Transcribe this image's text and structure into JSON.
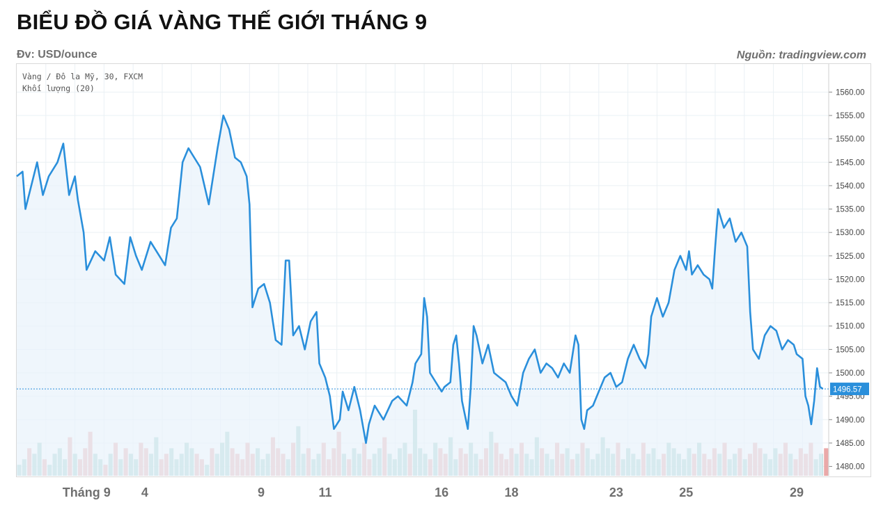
{
  "header": {
    "title": "BIỂU ĐỒ GIÁ VÀNG THẾ GIỚI THÁNG 9",
    "unit": "Đv: USD/ounce",
    "source": "Nguồn: tradingview.com"
  },
  "colors": {
    "line": "#2a8fdb",
    "area": "#e9f3fb",
    "grid": "#eaf0f4",
    "vol_up": "#8fc7bf",
    "vol_down": "#e69a9a",
    "price_label_bg": "#2a8fdb"
  },
  "chart_data": {
    "type": "line",
    "legend": [
      "Vàng / Đô la Mỹ, 30, FXCM",
      "Khối lượng (20)"
    ],
    "ylim": [
      1478,
      1566
    ],
    "yticks": [
      1480,
      1485,
      1490,
      1495,
      1500,
      1505,
      1510,
      1515,
      1520,
      1525,
      1530,
      1535,
      1540,
      1545,
      1550,
      1555,
      1560
    ],
    "ytick_labels": [
      "1480.00",
      "1485.00",
      "1490.00",
      "1495.00",
      "1500.00",
      "1505.00",
      "1510.00",
      "1515.00",
      "1520.00",
      "1525.00",
      "1530.00",
      "1535.00",
      "1540.00",
      "1545.00",
      "1550.00",
      "1555.00",
      "1560.00"
    ],
    "x_tick_labels": [
      {
        "label": "Tháng 9",
        "t": 1.2
      },
      {
        "label": "4",
        "t": 2.2
      },
      {
        "label": "9",
        "t": 4.2
      },
      {
        "label": "11",
        "t": 5.3
      },
      {
        "label": "16",
        "t": 7.3
      },
      {
        "label": "18",
        "t": 8.5
      },
      {
        "label": "23",
        "t": 10.3
      },
      {
        "label": "25",
        "t": 11.5
      },
      {
        "label": "29",
        "t": 13.4
      }
    ],
    "last_price": 1496.57,
    "last_price_label": "1496.57",
    "series": [
      {
        "values": [
          [
            0.0,
            1542
          ],
          [
            0.1,
            1543
          ],
          [
            0.15,
            1535
          ],
          [
            0.25,
            1540
          ],
          [
            0.35,
            1545
          ],
          [
            0.45,
            1538
          ],
          [
            0.55,
            1542
          ],
          [
            0.7,
            1545
          ],
          [
            0.8,
            1549
          ],
          [
            0.9,
            1538
          ],
          [
            1.0,
            1542
          ],
          [
            1.05,
            1537
          ],
          [
            1.15,
            1530
          ],
          [
            1.2,
            1522
          ],
          [
            1.35,
            1526
          ],
          [
            1.5,
            1524
          ],
          [
            1.6,
            1529
          ],
          [
            1.7,
            1521
          ],
          [
            1.85,
            1519
          ],
          [
            1.95,
            1529
          ],
          [
            2.05,
            1525
          ],
          [
            2.15,
            1522
          ],
          [
            2.3,
            1528
          ],
          [
            2.45,
            1525
          ],
          [
            2.55,
            1523
          ],
          [
            2.65,
            1531
          ],
          [
            2.75,
            1533
          ],
          [
            2.85,
            1545
          ],
          [
            2.95,
            1548
          ],
          [
            3.05,
            1546
          ],
          [
            3.15,
            1544
          ],
          [
            3.3,
            1536
          ],
          [
            3.45,
            1548
          ],
          [
            3.55,
            1555
          ],
          [
            3.65,
            1552
          ],
          [
            3.75,
            1546
          ],
          [
            3.85,
            1545
          ],
          [
            3.95,
            1542
          ],
          [
            4.0,
            1536
          ],
          [
            4.05,
            1514
          ],
          [
            4.15,
            1518
          ],
          [
            4.25,
            1519
          ],
          [
            4.35,
            1515
          ],
          [
            4.45,
            1507
          ],
          [
            4.55,
            1506
          ],
          [
            4.62,
            1524
          ],
          [
            4.68,
            1524
          ],
          [
            4.75,
            1508
          ],
          [
            4.85,
            1510
          ],
          [
            4.95,
            1505
          ],
          [
            5.05,
            1511
          ],
          [
            5.15,
            1513
          ],
          [
            5.2,
            1502
          ],
          [
            5.3,
            1499
          ],
          [
            5.38,
            1495
          ],
          [
            5.45,
            1488
          ],
          [
            5.55,
            1490
          ],
          [
            5.6,
            1496
          ],
          [
            5.7,
            1492
          ],
          [
            5.8,
            1497
          ],
          [
            5.9,
            1492
          ],
          [
            6.0,
            1485
          ],
          [
            6.05,
            1489
          ],
          [
            6.15,
            1493
          ],
          [
            6.3,
            1490
          ],
          [
            6.45,
            1494
          ],
          [
            6.55,
            1495
          ],
          [
            6.7,
            1493
          ],
          [
            6.8,
            1498
          ],
          [
            6.85,
            1502
          ],
          [
            6.95,
            1504
          ],
          [
            7.0,
            1516
          ],
          [
            7.05,
            1512
          ],
          [
            7.1,
            1500
          ],
          [
            7.2,
            1498
          ],
          [
            7.3,
            1496
          ],
          [
            7.35,
            1497
          ],
          [
            7.45,
            1498
          ],
          [
            7.5,
            1506
          ],
          [
            7.55,
            1508
          ],
          [
            7.6,
            1502
          ],
          [
            7.65,
            1494
          ],
          [
            7.75,
            1488
          ],
          [
            7.8,
            1497
          ],
          [
            7.85,
            1510
          ],
          [
            7.9,
            1508
          ],
          [
            8.0,
            1502
          ],
          [
            8.1,
            1506
          ],
          [
            8.2,
            1500
          ],
          [
            8.3,
            1499
          ],
          [
            8.4,
            1498
          ],
          [
            8.5,
            1495
          ],
          [
            8.6,
            1493
          ],
          [
            8.7,
            1500
          ],
          [
            8.8,
            1503
          ],
          [
            8.9,
            1505
          ],
          [
            9.0,
            1500
          ],
          [
            9.1,
            1502
          ],
          [
            9.2,
            1501
          ],
          [
            9.3,
            1499
          ],
          [
            9.4,
            1502
          ],
          [
            9.5,
            1500
          ],
          [
            9.6,
            1508
          ],
          [
            9.65,
            1506
          ],
          [
            9.7,
            1490
          ],
          [
            9.75,
            1488
          ],
          [
            9.8,
            1492
          ],
          [
            9.9,
            1493
          ],
          [
            10.0,
            1496
          ],
          [
            10.1,
            1499
          ],
          [
            10.2,
            1500
          ],
          [
            10.3,
            1497
          ],
          [
            10.4,
            1498
          ],
          [
            10.5,
            1503
          ],
          [
            10.6,
            1506
          ],
          [
            10.7,
            1503
          ],
          [
            10.8,
            1501
          ],
          [
            10.85,
            1504
          ],
          [
            10.9,
            1512
          ],
          [
            11.0,
            1516
          ],
          [
            11.1,
            1512
          ],
          [
            11.2,
            1515
          ],
          [
            11.3,
            1522
          ],
          [
            11.4,
            1525
          ],
          [
            11.5,
            1522
          ],
          [
            11.55,
            1526
          ],
          [
            11.6,
            1521
          ],
          [
            11.7,
            1523
          ],
          [
            11.8,
            1521
          ],
          [
            11.9,
            1520
          ],
          [
            11.95,
            1518
          ],
          [
            12.0,
            1527
          ],
          [
            12.05,
            1535
          ],
          [
            12.15,
            1531
          ],
          [
            12.25,
            1533
          ],
          [
            12.35,
            1528
          ],
          [
            12.45,
            1530
          ],
          [
            12.55,
            1527
          ],
          [
            12.6,
            1513
          ],
          [
            12.65,
            1505
          ],
          [
            12.75,
            1503
          ],
          [
            12.85,
            1508
          ],
          [
            12.95,
            1510
          ],
          [
            13.05,
            1509
          ],
          [
            13.15,
            1505
          ],
          [
            13.25,
            1507
          ],
          [
            13.35,
            1506
          ],
          [
            13.4,
            1504
          ],
          [
            13.5,
            1503
          ],
          [
            13.55,
            1495
          ],
          [
            13.6,
            1493
          ],
          [
            13.65,
            1489
          ],
          [
            13.7,
            1494
          ],
          [
            13.75,
            1501
          ],
          [
            13.8,
            1497
          ],
          [
            13.85,
            1496.57
          ]
        ]
      }
    ],
    "volume": {
      "name": "Khối lượng (20)",
      "bars": [
        2,
        3,
        5,
        4,
        6,
        3,
        2,
        4,
        5,
        3,
        7,
        4,
        3,
        5,
        8,
        4,
        3,
        2,
        4,
        6,
        3,
        5,
        4,
        3,
        6,
        5,
        4,
        7,
        3,
        4,
        5,
        3,
        4,
        6,
        5,
        4,
        3,
        2,
        5,
        4,
        6,
        8,
        5,
        4,
        3,
        6,
        4,
        5,
        3,
        4,
        7,
        5,
        4,
        3,
        6,
        9,
        4,
        5,
        3,
        4,
        6,
        3,
        5,
        8,
        4,
        3,
        5,
        4,
        6,
        3,
        4,
        5,
        7,
        4,
        3,
        5,
        6,
        4,
        12,
        5,
        4,
        3,
        6,
        5,
        4,
        7,
        3,
        5,
        4,
        6,
        4,
        3,
        5,
        8,
        6,
        4,
        3,
        5,
        4,
        6,
        4,
        3,
        7,
        5,
        4,
        3,
        6,
        4,
        5,
        3,
        4,
        6,
        5,
        3,
        4,
        7,
        5,
        4,
        6,
        3,
        5,
        4,
        3,
        6,
        4,
        5,
        3,
        4,
        6,
        5,
        4,
        3,
        5,
        4,
        6,
        4,
        3,
        5,
        4,
        6,
        3,
        4,
        5,
        3,
        4,
        6,
        5,
        4,
        3,
        5,
        4,
        6,
        4,
        3,
        5,
        4,
        6,
        3,
        4,
        5
      ]
    }
  }
}
